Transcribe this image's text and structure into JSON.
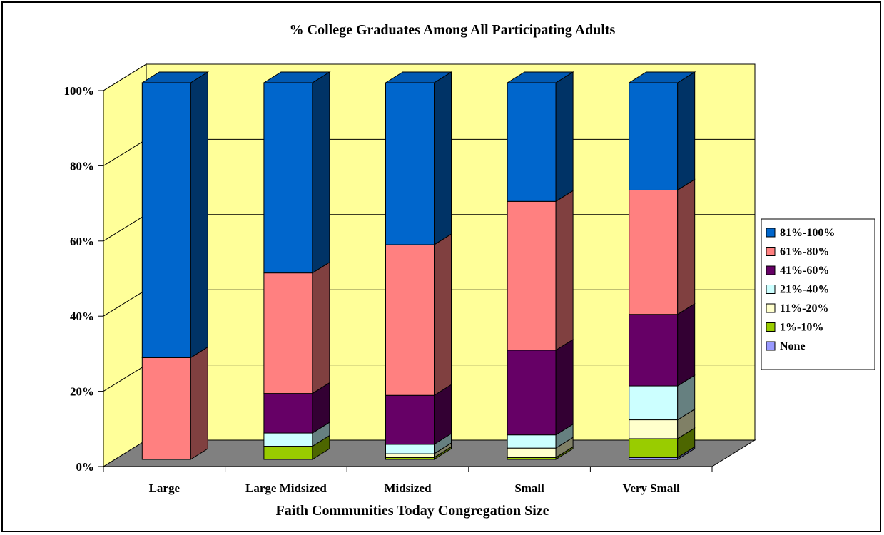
{
  "chart_data": {
    "type": "bar",
    "stacked": true,
    "three_d": true,
    "title": "% College Graduates Among  All Participating Adults",
    "xlabel": "Faith Communities Today Congregation Size",
    "ylabel": "",
    "ylim": [
      0,
      100
    ],
    "y_ticks": [
      "0%",
      "20%",
      "40%",
      "60%",
      "80%",
      "100%"
    ],
    "y_tick_values": [
      0,
      20,
      40,
      60,
      80,
      100
    ],
    "categories": [
      "Large",
      "Large Midsized",
      "Midsized",
      "Small",
      "Very Small"
    ],
    "legend_position": "right",
    "grid": true,
    "wall_color": "#ffff99",
    "floor_color": "#808080",
    "series": [
      {
        "name": "None",
        "color": "#9999ff",
        "side": "#4d4d80",
        "top": "#b3b3ff",
        "values": [
          0,
          0,
          0,
          0,
          0.5
        ]
      },
      {
        "name": "1%-10%",
        "color": "#99cc00",
        "side": "#4d6600",
        "top": "#b3dd33",
        "values": [
          0,
          3.5,
          0.5,
          0.5,
          5
        ]
      },
      {
        "name": "11%-20%",
        "color": "#ffffcc",
        "side": "#808066",
        "top": "#ffffe0",
        "values": [
          0,
          0,
          1,
          2.5,
          5
        ]
      },
      {
        "name": "21%-40%",
        "color": "#ccffff",
        "side": "#668080",
        "top": "#e0ffff",
        "values": [
          0,
          3.5,
          2.5,
          3.5,
          9
        ]
      },
      {
        "name": "41%-60%",
        "color": "#660066",
        "side": "#330033",
        "top": "#800080",
        "values": [
          0,
          10.5,
          13,
          22.5,
          19
        ]
      },
      {
        "name": "61%-80%",
        "color": "#ff8080",
        "side": "#804040",
        "top": "#ffa0a0",
        "values": [
          27,
          32,
          40,
          39.5,
          33
        ]
      },
      {
        "name": "81%-100%",
        "color": "#0066cc",
        "side": "#003366",
        "top": "#0059b3",
        "values": [
          73,
          50.5,
          43,
          31.5,
          28.5
        ]
      }
    ]
  }
}
